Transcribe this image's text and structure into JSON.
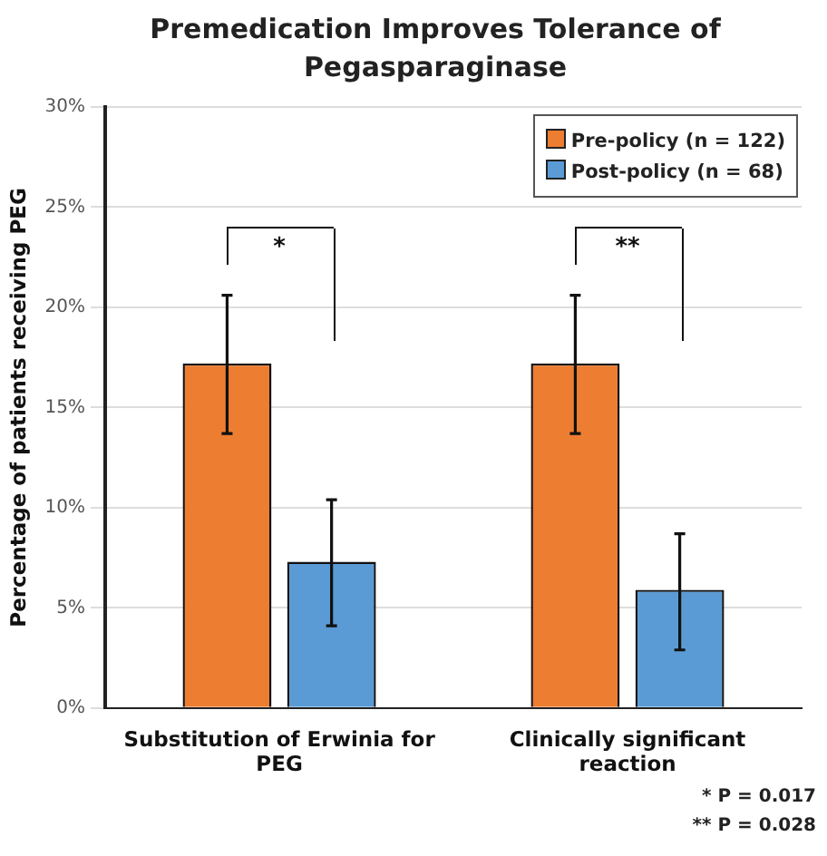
{
  "chart_data": {
    "type": "bar",
    "title": "Premedication Improves Tolerance of Pegasparaginase",
    "ylabel": "Percentage of patients receiving PEG",
    "categories": [
      "Substitution of Erwinia for PEG",
      "Clinically significant reaction"
    ],
    "series": [
      {
        "name": "Pre-policy (n = 122)",
        "color": "#ed7d31",
        "values": [
          17.2,
          17.2
        ],
        "errors": [
          [
            13.7,
            20.6
          ],
          [
            13.7,
            20.6
          ]
        ]
      },
      {
        "name": "Post-policy (n = 68)",
        "color": "#5b9bd5",
        "values": [
          7.3,
          5.9
        ],
        "errors": [
          [
            4.1,
            10.4
          ],
          [
            2.9,
            8.7
          ]
        ]
      }
    ],
    "ylim": [
      0,
      30
    ],
    "yticks": [
      {
        "value": 0,
        "label": "0%"
      },
      {
        "value": 5,
        "label": "5%"
      },
      {
        "value": 10,
        "label": "10%"
      },
      {
        "value": 15,
        "label": "15%"
      },
      {
        "value": 20,
        "label": "20%"
      },
      {
        "value": 25,
        "label": "25%"
      },
      {
        "value": 30,
        "label": "30%"
      }
    ],
    "grid": "y",
    "legend": "top right",
    "annotations": [
      "*",
      "**",
      "* P = 0.017",
      "** P = 0.028"
    ]
  }
}
